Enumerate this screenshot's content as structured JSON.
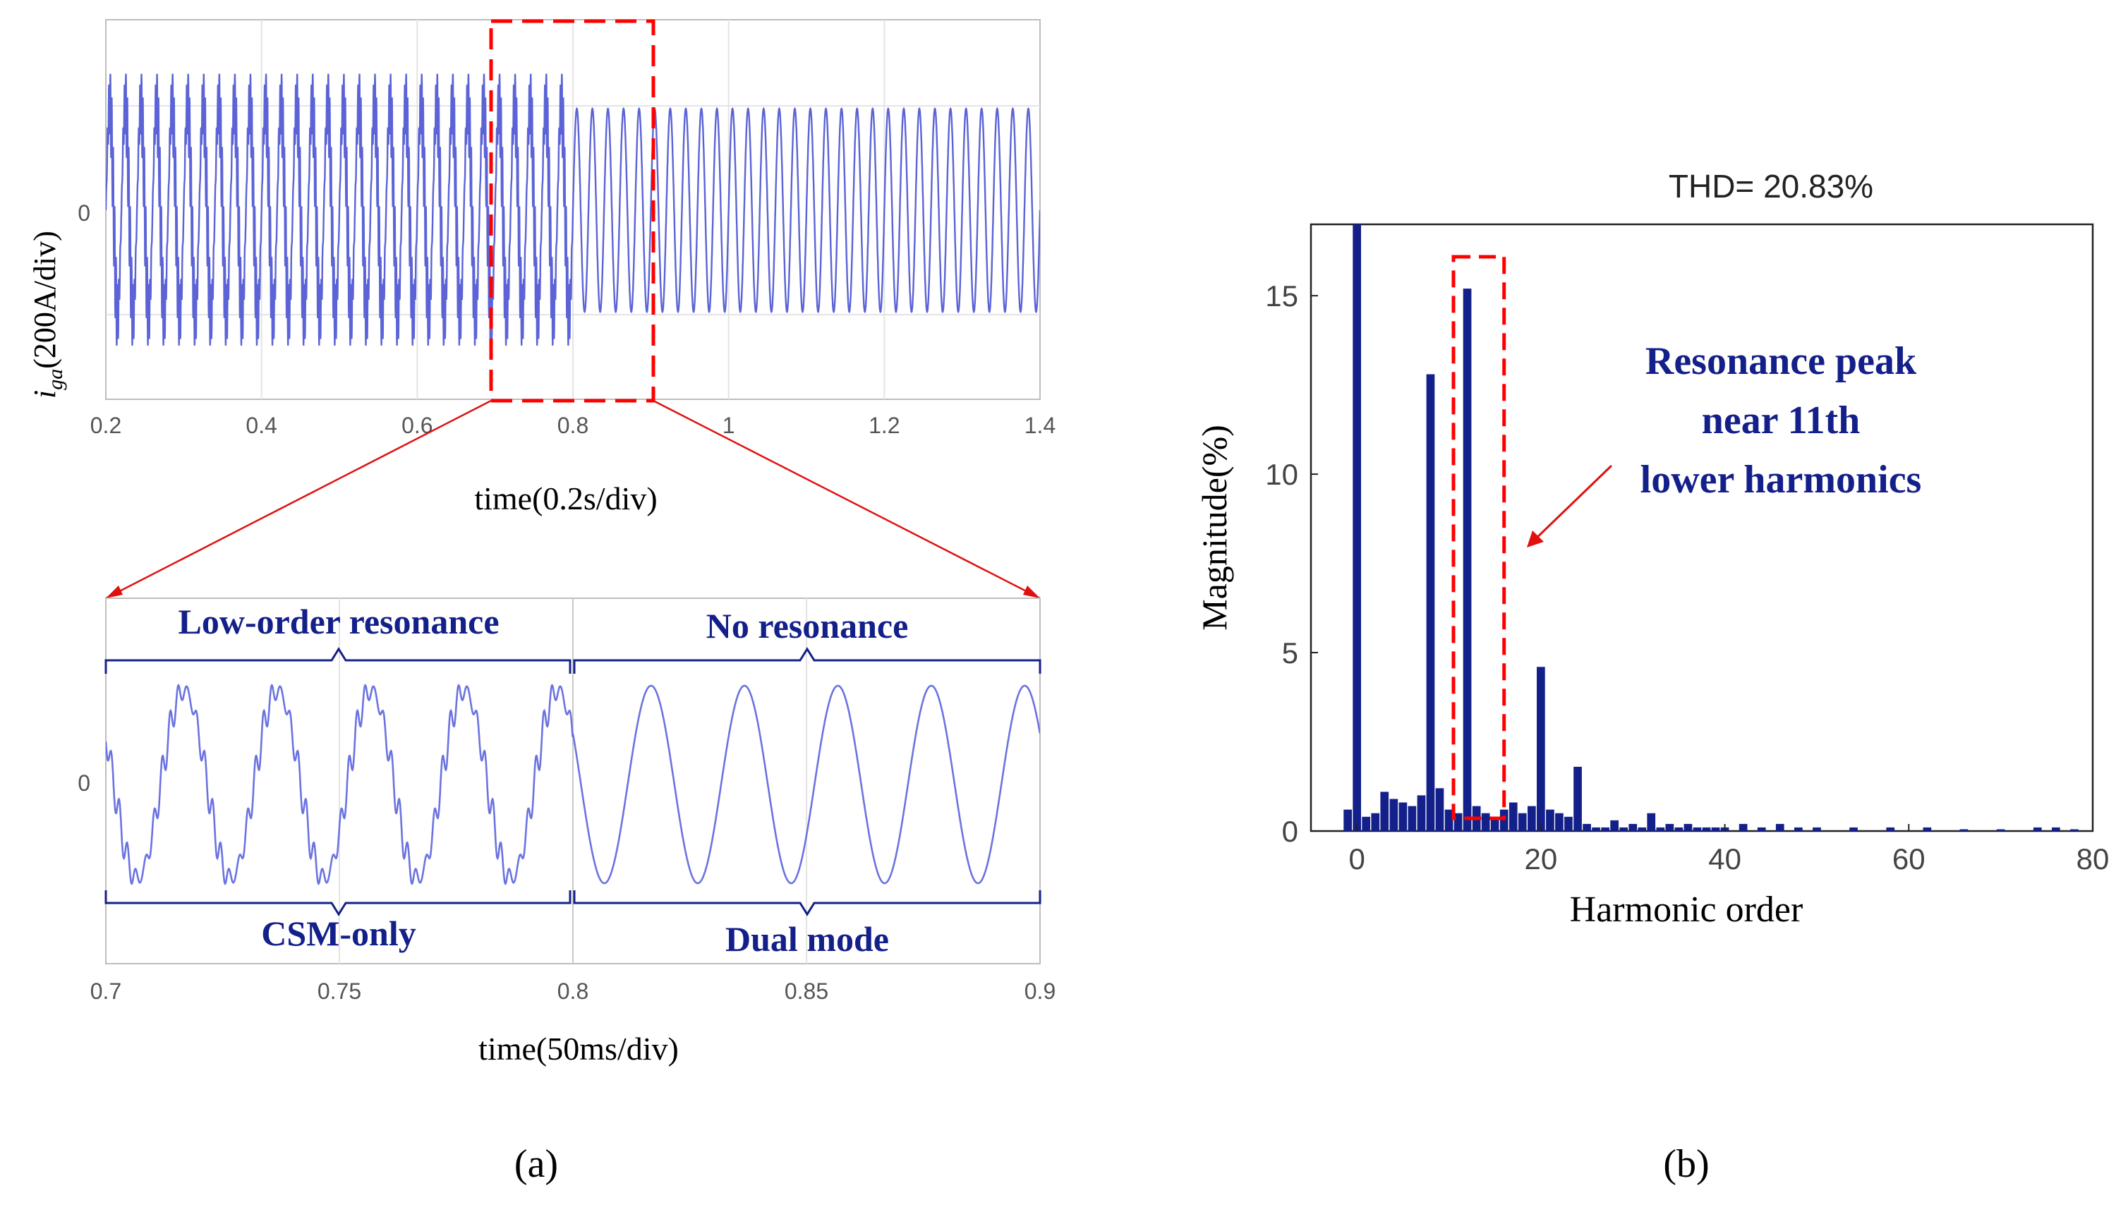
{
  "chart_data": [
    {
      "id": "a-top",
      "type": "line",
      "description_label": "(a)",
      "ylabel_main": "i",
      "ylabel_sub": "ga",
      "ylabel_rest": "(200A/div)",
      "xlabel": "time(0.2s/div)",
      "xlim": [
        0.2,
        1.4
      ],
      "x_ticks": [
        "0.2",
        "0.4",
        "0.6",
        "0.8",
        "1",
        "1.2",
        "1.4"
      ],
      "y_ticks": [
        "0"
      ],
      "grid": true,
      "zoom_window": [
        0.7,
        0.9
      ],
      "series": [
        {
          "name": "iga",
          "fundamental_hz": 50,
          "color": "#5b63d6"
        }
      ]
    },
    {
      "id": "a-bottom",
      "type": "line",
      "xlabel": "time(50ms/div)",
      "xlim": [
        0.7,
        0.9
      ],
      "x_ticks": [
        "0.7",
        "0.75",
        "0.8",
        "0.85",
        "0.9"
      ],
      "y_ticks": [
        "0"
      ],
      "grid": true,
      "annotations": {
        "left_top": "Low-order resonance",
        "right_top": "No resonance",
        "left_bottom": "CSM-only",
        "right_bottom": "Dual mode"
      },
      "segments": [
        {
          "range": [
            0.7,
            0.8
          ],
          "label": "CSM-only",
          "resonance": "Low-order resonance"
        },
        {
          "range": [
            0.8,
            0.9
          ],
          "label": "Dual mode",
          "resonance": "No resonance"
        }
      ],
      "series": [
        {
          "name": "iga",
          "color": "#5b63d6"
        }
      ]
    },
    {
      "id": "b",
      "type": "bar",
      "description_label": "(b)",
      "title": "THD= 20.83%",
      "xlabel": "Harmonic order",
      "ylabel": "Magnitude(%)",
      "xlim": [
        -5,
        80
      ],
      "ylim": [
        0,
        17
      ],
      "x_ticks": [
        "0",
        "20",
        "40",
        "60",
        "80"
      ],
      "y_ticks": [
        "0",
        "5",
        "10",
        "15"
      ],
      "bar_color": "#14208a",
      "annotation": {
        "line1": "Resonance peak",
        "line2": "near 11th",
        "line3": "lower harmonics"
      },
      "highlight_range": [
        11,
        16
      ],
      "x": [
        -1,
        0,
        1,
        2,
        3,
        4,
        5,
        6,
        7,
        8,
        9,
        10,
        11,
        12,
        13,
        14,
        15,
        16,
        17,
        18,
        19,
        20,
        21,
        22,
        23,
        24,
        25,
        26,
        27,
        28,
        29,
        30,
        31,
        32,
        33,
        34,
        35,
        36,
        37,
        38,
        39,
        40,
        42,
        44,
        46,
        48,
        50,
        54,
        58,
        62,
        66,
        70,
        74,
        76,
        78
      ],
      "values": [
        0.6,
        17,
        0.4,
        0.5,
        1.1,
        0.9,
        0.8,
        0.7,
        1.0,
        12.8,
        1.2,
        0.6,
        0.5,
        15.2,
        0.7,
        0.5,
        0.4,
        0.6,
        0.8,
        0.5,
        0.7,
        4.6,
        0.6,
        0.5,
        0.4,
        1.8,
        0.2,
        0.1,
        0.1,
        0.3,
        0.1,
        0.2,
        0.1,
        0.5,
        0.1,
        0.2,
        0.1,
        0.2,
        0.1,
        0.1,
        0.1,
        0.1,
        0.2,
        0.1,
        0.2,
        0.1,
        0.1,
        0.1,
        0.1,
        0.1,
        0.05,
        0.05,
        0.1,
        0.1,
        0.05
      ]
    }
  ]
}
